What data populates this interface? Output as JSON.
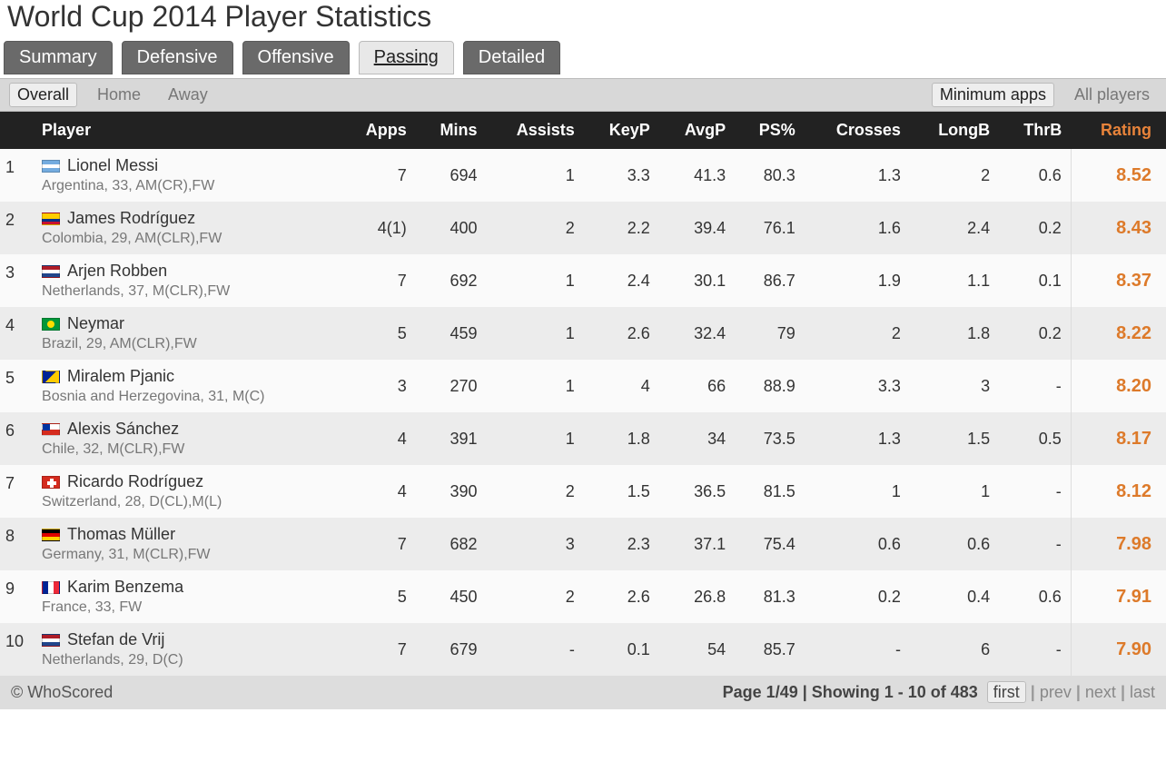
{
  "title": "World Cup 2014 Player Statistics",
  "primaryTabs": [
    "Summary",
    "Defensive",
    "Offensive",
    "Passing",
    "Detailed"
  ],
  "primaryActive": 3,
  "secondaryLeft": [
    "Overall",
    "Home",
    "Away"
  ],
  "secondaryLeftActive": 0,
  "secondaryRight": [
    "Minimum apps",
    "All players"
  ],
  "secondaryRightActive": 0,
  "columns": [
    "",
    "Player",
    "Apps",
    "Mins",
    "Assists",
    "KeyP",
    "AvgP",
    "PS%",
    "Crosses",
    "LongB",
    "ThrB",
    "Rating"
  ],
  "rows": [
    {
      "rank": "1",
      "flag": "ar",
      "name": "Lionel Messi",
      "country": "Argentina",
      "age": "33",
      "pos": "AM(CR),FW",
      "apps": "7",
      "mins": "694",
      "assists": "1",
      "keyp": "3.3",
      "avgp": "41.3",
      "ps": "80.3",
      "crosses": "1.3",
      "longb": "2",
      "thrb": "0.6",
      "rating": "8.52"
    },
    {
      "rank": "2",
      "flag": "co",
      "name": "James Rodríguez",
      "country": "Colombia",
      "age": "29",
      "pos": "AM(CLR),FW",
      "apps": "4(1)",
      "mins": "400",
      "assists": "2",
      "keyp": "2.2",
      "avgp": "39.4",
      "ps": "76.1",
      "crosses": "1.6",
      "longb": "2.4",
      "thrb": "0.2",
      "rating": "8.43"
    },
    {
      "rank": "3",
      "flag": "nl",
      "name": "Arjen Robben",
      "country": "Netherlands",
      "age": "37",
      "pos": "M(CLR),FW",
      "apps": "7",
      "mins": "692",
      "assists": "1",
      "keyp": "2.4",
      "avgp": "30.1",
      "ps": "86.7",
      "crosses": "1.9",
      "longb": "1.1",
      "thrb": "0.1",
      "rating": "8.37"
    },
    {
      "rank": "4",
      "flag": "br",
      "name": "Neymar",
      "country": "Brazil",
      "age": "29",
      "pos": "AM(CLR),FW",
      "apps": "5",
      "mins": "459",
      "assists": "1",
      "keyp": "2.6",
      "avgp": "32.4",
      "ps": "79",
      "crosses": "2",
      "longb": "1.8",
      "thrb": "0.2",
      "rating": "8.22"
    },
    {
      "rank": "5",
      "flag": "ba",
      "name": "Miralem Pjanic",
      "country": "Bosnia and Herzegovina",
      "age": "31",
      "pos": "M(C)",
      "apps": "3",
      "mins": "270",
      "assists": "1",
      "keyp": "4",
      "avgp": "66",
      "ps": "88.9",
      "crosses": "3.3",
      "longb": "3",
      "thrb": "-",
      "rating": "8.20"
    },
    {
      "rank": "6",
      "flag": "cl",
      "name": "Alexis Sánchez",
      "country": "Chile",
      "age": "32",
      "pos": "M(CLR),FW",
      "apps": "4",
      "mins": "391",
      "assists": "1",
      "keyp": "1.8",
      "avgp": "34",
      "ps": "73.5",
      "crosses": "1.3",
      "longb": "1.5",
      "thrb": "0.5",
      "rating": "8.17"
    },
    {
      "rank": "7",
      "flag": "ch",
      "name": "Ricardo Rodríguez",
      "country": "Switzerland",
      "age": "28",
      "pos": "D(CL),M(L)",
      "apps": "4",
      "mins": "390",
      "assists": "2",
      "keyp": "1.5",
      "avgp": "36.5",
      "ps": "81.5",
      "crosses": "1",
      "longb": "1",
      "thrb": "-",
      "rating": "8.12"
    },
    {
      "rank": "8",
      "flag": "de",
      "name": "Thomas Müller",
      "country": "Germany",
      "age": "31",
      "pos": "M(CLR),FW",
      "apps": "7",
      "mins": "682",
      "assists": "3",
      "keyp": "2.3",
      "avgp": "37.1",
      "ps": "75.4",
      "crosses": "0.6",
      "longb": "0.6",
      "thrb": "-",
      "rating": "7.98"
    },
    {
      "rank": "9",
      "flag": "fr",
      "name": "Karim Benzema",
      "country": "France",
      "age": "33",
      "pos": "FW",
      "apps": "5",
      "mins": "450",
      "assists": "2",
      "keyp": "2.6",
      "avgp": "26.8",
      "ps": "81.3",
      "crosses": "0.2",
      "longb": "0.4",
      "thrb": "0.6",
      "rating": "7.91"
    },
    {
      "rank": "10",
      "flag": "nl",
      "name": "Stefan de Vrij",
      "country": "Netherlands",
      "age": "29",
      "pos": "D(C)",
      "apps": "7",
      "mins": "679",
      "assists": "-",
      "keyp": "0.1",
      "avgp": "54",
      "ps": "85.7",
      "crosses": "-",
      "longb": "6",
      "thrb": "-",
      "rating": "7.90"
    }
  ],
  "footer": {
    "copyright": "© WhoScored",
    "pageInfo": "Page 1/49 | Showing 1 - 10 of 483",
    "nav": [
      "first",
      "prev",
      "next",
      "last"
    ],
    "navActive": 0
  }
}
